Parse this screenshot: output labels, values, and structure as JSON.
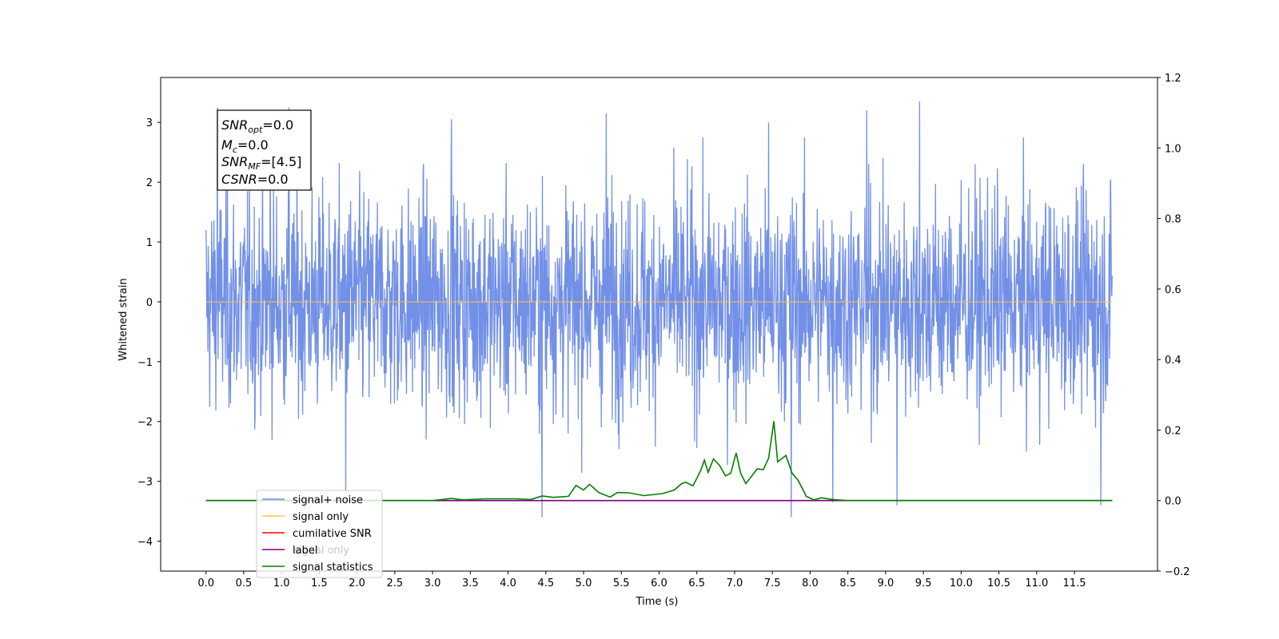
{
  "chart_data": {
    "type": "line",
    "xlabel": "Time (s)",
    "ylabel": "Whitened strain",
    "xlim": [
      -0.6,
      12.6
    ],
    "ylim": [
      -4.5,
      3.75
    ],
    "y2lim": [
      -0.2,
      1.2
    ],
    "x_ticks": [
      "0.0",
      "0.5",
      "1.0",
      "1.5",
      "2.0",
      "2.5",
      "3.0",
      "3.5",
      "4.0",
      "4.5",
      "5.0",
      "5.5",
      "6.0",
      "6.5",
      "7.0",
      "7.5",
      "8.0",
      "8.5",
      "9.0",
      "9.5",
      "10.0",
      "10.5",
      "11.0",
      "11.5"
    ],
    "y_ticks": [
      "3",
      "2",
      "1",
      "0",
      "−1",
      "−2",
      "−3",
      "−4"
    ],
    "y2_ticks": [
      "1.2",
      "1.0",
      "0.8",
      "0.6",
      "0.4",
      "0.2",
      "0.0",
      "−0.2"
    ],
    "annotation": {
      "lines": [
        {
          "sym": "SNR",
          "sub": "opt",
          "value": "=0.0"
        },
        {
          "sym": "M",
          "sub": "c",
          "value": "=0.0"
        },
        {
          "sym": "SNR",
          "sub": "MF",
          "value": "=[4.5]"
        },
        {
          "sym": "CSNR",
          "sub": "",
          "value": "=0.0"
        }
      ]
    },
    "legend": {
      "position": "lower-left",
      "entries": [
        {
          "label": "signal+ noise",
          "color": "#6a8ae6"
        },
        {
          "label": "signal only",
          "color": "#ffc04d"
        },
        {
          "label": "cumilative SNR",
          "color": "#ff0000"
        },
        {
          "label": "label",
          "color": "#800080"
        },
        {
          "label": "signal statistics",
          "color": "#008000"
        }
      ],
      "hidden_text": [
        "signal only"
      ]
    },
    "series": [
      {
        "name": "signal+ noise",
        "axis": "left",
        "color": "#6a8ae6",
        "x_range": [
          0.0,
          12.0
        ],
        "envelope": {
          "typical_amplitude": 1.7,
          "max": 3.35,
          "min": -3.6
        },
        "spikes": [
          {
            "x": 0.15,
            "y": 3.25
          },
          {
            "x": 0.85,
            "y": 3.15
          },
          {
            "x": 1.1,
            "y": 3.25
          },
          {
            "x": 1.85,
            "y": -3.2
          },
          {
            "x": 3.25,
            "y": 3.05
          },
          {
            "x": 4.45,
            "y": -3.6
          },
          {
            "x": 5.3,
            "y": 3.15
          },
          {
            "x": 7.45,
            "y": 3.0
          },
          {
            "x": 7.75,
            "y": -3.6
          },
          {
            "x": 8.3,
            "y": -3.35
          },
          {
            "x": 8.75,
            "y": 3.2
          },
          {
            "x": 9.15,
            "y": -3.4
          },
          {
            "x": 9.45,
            "y": 3.35
          },
          {
            "x": 11.85,
            "y": -3.4
          }
        ]
      },
      {
        "name": "signal only",
        "axis": "left",
        "color": "#ffc04d",
        "x": [
          0.0,
          12.0
        ],
        "y": [
          0.0,
          0.0
        ]
      },
      {
        "name": "label",
        "axis": "right",
        "color": "#800080",
        "x": [
          0.0,
          12.0
        ],
        "y": [
          0.0,
          0.0
        ]
      },
      {
        "name": "signal statistics",
        "axis": "right",
        "color": "#008000",
        "x": [
          0.0,
          3.0,
          3.25,
          3.4,
          3.7,
          4.1,
          4.3,
          4.45,
          4.6,
          4.8,
          4.9,
          5.0,
          5.08,
          5.2,
          5.35,
          5.45,
          5.6,
          5.8,
          6.05,
          6.2,
          6.3,
          6.35,
          6.45,
          6.55,
          6.6,
          6.65,
          6.72,
          6.8,
          6.88,
          6.95,
          7.02,
          7.08,
          7.15,
          7.22,
          7.3,
          7.38,
          7.45,
          7.52,
          7.57,
          7.68,
          7.76,
          7.84,
          7.95,
          8.05,
          8.15,
          8.3,
          8.5,
          12.0
        ],
        "y": [
          0.0,
          0.0,
          0.006,
          0.002,
          0.005,
          0.005,
          0.003,
          0.013,
          0.009,
          0.012,
          0.043,
          0.03,
          0.046,
          0.023,
          0.01,
          0.023,
          0.022,
          0.014,
          0.02,
          0.03,
          0.048,
          0.052,
          0.042,
          0.085,
          0.115,
          0.08,
          0.118,
          0.1,
          0.07,
          0.078,
          0.135,
          0.078,
          0.048,
          0.068,
          0.09,
          0.088,
          0.12,
          0.225,
          0.11,
          0.128,
          0.078,
          0.058,
          0.012,
          0.002,
          0.008,
          0.003,
          0.0,
          0.0
        ]
      }
    ]
  }
}
